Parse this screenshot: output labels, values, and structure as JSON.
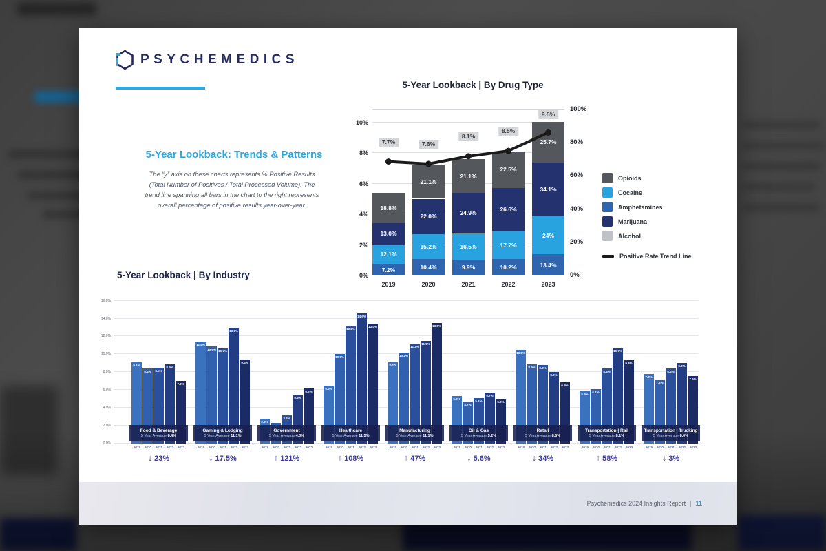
{
  "logo": {
    "wordmark": "PSYCHEMEDICS"
  },
  "intro": {
    "heading": "5-Year Lookback: Trends & Patterns",
    "body": "The “y” axis on these charts represents % Positive Results (Total Number of Positives / Total Processed Volume). The trend line spanning all bars in the chart to the right represents overall percentage of positive results year-over-year."
  },
  "footer": {
    "report_name": "Psychemedics 2024 Insights Report",
    "separator": "|",
    "page_number": "11"
  },
  "chart_data": [
    {
      "type": "bar",
      "variant": "stacked-bars-with-trend-line",
      "title": "5-Year Lookback | By Drug Type",
      "categories": [
        "2019",
        "2020",
        "2021",
        "2022",
        "2023"
      ],
      "series": [
        {
          "name": "Amphetamines",
          "color": "#2f64ae",
          "values": [
            7.2,
            10.4,
            9.9,
            10.2,
            13.4
          ],
          "labels": [
            "7.2%",
            "10.4%",
            "9.9%",
            "10.2%",
            "13.4%"
          ]
        },
        {
          "name": "Cocaine",
          "color": "#29a3e0",
          "values": [
            12.1,
            15.2,
            16.5,
            17.7,
            24
          ],
          "labels": [
            "12.1%",
            "15.2%",
            "16.5%",
            "17.7%",
            "24%"
          ]
        },
        {
          "name": "Marijuana",
          "color": "#24336f",
          "values": [
            13.0,
            22.0,
            24.9,
            26.6,
            34.1
          ],
          "labels": [
            "13.0%",
            "22.0%",
            "24.9%",
            "26.6%",
            "34.1%"
          ]
        },
        {
          "name": "Opioids",
          "color": "#54575c",
          "values": [
            18.8,
            21.1,
            21.1,
            22.5,
            25.7
          ],
          "labels": [
            "18.8%",
            "21.1%",
            "21.1%",
            "22.5%",
            "25.7%"
          ]
        }
      ],
      "bar_total_heights_left_axis_pct": [
        5.4,
        7.25,
        7.6,
        8.1,
        10.05
      ],
      "trend_line": {
        "name": "Positive Rate Trend Line",
        "color": "#1a1a1a",
        "labels": [
          "7.7%",
          "7.6%",
          "8.1%",
          "8.5%",
          "9.5%"
        ],
        "values": [
          7.7,
          7.6,
          8.1,
          8.5,
          9.5
        ],
        "plotted_left_axis_pct": [
          7.45,
          7.3,
          7.8,
          8.15,
          9.35
        ]
      },
      "left_axis": {
        "ticks": [
          "0%",
          "2%",
          "4%",
          "6%",
          "8%",
          "10%"
        ],
        "tick_values": [
          0,
          2,
          4,
          6,
          8,
          10
        ],
        "max": 10
      },
      "right_axis": {
        "ticks": [
          "0%",
          "20%",
          "40%",
          "60%",
          "80%",
          "100%"
        ],
        "tick_values": [
          0,
          20,
          40,
          60,
          80,
          100
        ],
        "max": 100
      },
      "legend": [
        {
          "label": "Opioids",
          "swatch": "square",
          "color": "#54575c"
        },
        {
          "label": "Cocaine",
          "swatch": "square",
          "color": "#29a3e0"
        },
        {
          "label": "Amphetamines",
          "swatch": "square",
          "color": "#2f64ae"
        },
        {
          "label": "Marijuana",
          "swatch": "square",
          "color": "#24336f"
        },
        {
          "label": "Alcohol",
          "swatch": "square",
          "color": "#bfc3c7"
        },
        {
          "label": "Positive Rate Trend Line",
          "swatch": "line",
          "color": "#1a1a1a"
        }
      ],
      "grid": true,
      "legend_position": "right"
    },
    {
      "type": "bar",
      "variant": "grouped-by-industry",
      "title": "5-Year Lookback | By Industry",
      "years": [
        "2019",
        "2020",
        "2021",
        "2022",
        "2023"
      ],
      "year_colors": [
        "#3b72c0",
        "#3161ae",
        "#2a4f9c",
        "#233d85",
        "#1b2b66"
      ],
      "y_axis": {
        "ticks": [
          "0.0%",
          "2.0%",
          "4.0%",
          "6.0%",
          "8.0%",
          "10.0%",
          "12.0%",
          "14.0%",
          "16.0%"
        ],
        "tick_values": [
          0,
          2,
          4,
          6,
          8,
          10,
          12,
          14,
          16
        ],
        "max": 16
      },
      "avg_prefix": "5 Year Average",
      "groups": [
        {
          "name": "Food & Beverage",
          "avg": "8.4%",
          "values": [
            9.1,
            8.4,
            8.5,
            8.9,
            7.0
          ],
          "labels": [
            "9.1%",
            "8.4%",
            "8.5%",
            "8.9%",
            "7.0%"
          ],
          "direction": "down",
          "change": "23%"
        },
        {
          "name": "Gaming & Lodging",
          "avg": "11.1%",
          "values": [
            11.4,
            10.9,
            10.7,
            13.0,
            9.4
          ],
          "labels": [
            "11.4%",
            "10.9%",
            "10.7%",
            "13.0%",
            "9.4%"
          ],
          "direction": "down",
          "change": "17.5%"
        },
        {
          "name": "Government",
          "avg": "4.0%",
          "values": [
            2.8,
            2.3,
            3.2,
            5.5,
            6.2
          ],
          "labels": [
            "2.8%",
            "2.3%",
            "3.2%",
            "5.5%",
            "6.2%"
          ],
          "direction": "up",
          "change": "121%"
        },
        {
          "name": "Healthcare",
          "avg": "11.5%",
          "values": [
            6.5,
            10.0,
            13.2,
            14.6,
            13.4
          ],
          "labels": [
            "6.5%",
            "10.0%",
            "13.2%",
            "14.6%",
            "13.4%"
          ],
          "direction": "up",
          "change": "108%"
        },
        {
          "name": "Manufacturing",
          "avg": "11.1%",
          "values": [
            9.2,
            10.2,
            11.2,
            11.5,
            13.5
          ],
          "labels": [
            "9.2%",
            "10.2%",
            "11.2%",
            "11.5%",
            "13.5%"
          ],
          "direction": "up",
          "change": "47%"
        },
        {
          "name": "Oil & Gas",
          "avg": "5.2%",
          "values": [
            5.3,
            4.7,
            5.1,
            5.7,
            5.0
          ],
          "labels": [
            "5.3%",
            "4.7%",
            "5.1%",
            "5.7%",
            "5.0%"
          ],
          "direction": "down",
          "change": "5.6%"
        },
        {
          "name": "Retail",
          "avg": "8.6%",
          "values": [
            10.5,
            8.9,
            8.8,
            8.0,
            6.9
          ],
          "labels": [
            "10.5%",
            "8.9%",
            "8.8%",
            "8.0%",
            "6.9%"
          ],
          "direction": "down",
          "change": "34%"
        },
        {
          "name": "Transportation | Rail",
          "avg": "8.1%",
          "values": [
            5.9,
            6.1,
            8.4,
            10.7,
            9.3
          ],
          "labels": [
            "5.9%",
            "6.1%",
            "8.4%",
            "10.7%",
            "9.3%"
          ],
          "direction": "up",
          "change": "58%"
        },
        {
          "name": "Transportation | Trucking",
          "avg": "8.0%",
          "values": [
            7.8,
            7.2,
            8.4,
            9.0,
            7.6
          ],
          "labels": [
            "7.8%",
            "7.2%",
            "8.4%",
            "9.0%",
            "7.6%"
          ],
          "direction": "down",
          "change": "3%"
        }
      ],
      "grid": true
    }
  ],
  "icons": {
    "down_arrow": "↓",
    "up_arrow": "↑"
  }
}
